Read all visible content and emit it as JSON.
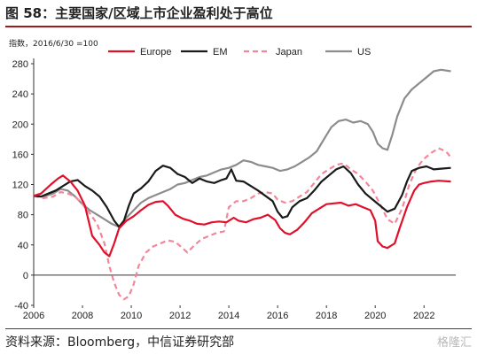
{
  "figure": {
    "title": "图 58：主要国家/区域上市企业盈利处于高位",
    "source": "资料来源：Bloomberg，中信证券研究部",
    "watermark": "格隆汇"
  },
  "colors": {
    "rule": "#9a1b1b",
    "europe": "#e0102a",
    "em": "#1a1a1a",
    "japan": "#f2869a",
    "us": "#8c8c8c"
  },
  "chart_data": {
    "type": "line",
    "title": "",
    "unit_label": "指数，2016/6/30 =100",
    "xlabel": "",
    "ylabel": "",
    "xlim": [
      2006,
      2023.3
    ],
    "ylim": [
      -40,
      280
    ],
    "yticks": [
      -40,
      0,
      40,
      80,
      120,
      160,
      200,
      240,
      280
    ],
    "xticks": [
      2006,
      2008,
      2010,
      2012,
      2014,
      2016,
      2018,
      2020,
      2022
    ],
    "grid": false,
    "legend": "top",
    "series": [
      {
        "name": "Europe",
        "style": "solid",
        "color_key": "europe",
        "points": [
          [
            2006,
            105
          ],
          [
            2006.3,
            108
          ],
          [
            2006.7,
            120
          ],
          [
            2007,
            128
          ],
          [
            2007.2,
            132
          ],
          [
            2007.5,
            124
          ],
          [
            2007.8,
            112
          ],
          [
            2008.1,
            92
          ],
          [
            2008.4,
            52
          ],
          [
            2008.7,
            40
          ],
          [
            2008.9,
            30
          ],
          [
            2009.1,
            25
          ],
          [
            2009.3,
            42
          ],
          [
            2009.5,
            62
          ],
          [
            2009.8,
            72
          ],
          [
            2010.1,
            78
          ],
          [
            2010.4,
            86
          ],
          [
            2010.7,
            93
          ],
          [
            2011.0,
            97
          ],
          [
            2011.3,
            98
          ],
          [
            2011.5,
            92
          ],
          [
            2011.8,
            80
          ],
          [
            2012.1,
            75
          ],
          [
            2012.4,
            72
          ],
          [
            2012.7,
            68
          ],
          [
            2013.0,
            67
          ],
          [
            2013.3,
            70
          ],
          [
            2013.6,
            71
          ],
          [
            2013.9,
            70
          ],
          [
            2014.2,
            76
          ],
          [
            2014.4,
            72
          ],
          [
            2014.7,
            70
          ],
          [
            2015.0,
            74
          ],
          [
            2015.3,
            76
          ],
          [
            2015.6,
            80
          ],
          [
            2015.9,
            73
          ],
          [
            2016.1,
            62
          ],
          [
            2016.3,
            56
          ],
          [
            2016.5,
            54
          ],
          [
            2016.8,
            60
          ],
          [
            2017.1,
            70
          ],
          [
            2017.4,
            82
          ],
          [
            2017.7,
            88
          ],
          [
            2018.0,
            94
          ],
          [
            2018.3,
            95
          ],
          [
            2018.6,
            96
          ],
          [
            2018.9,
            92
          ],
          [
            2019.2,
            94
          ],
          [
            2019.5,
            90
          ],
          [
            2019.8,
            86
          ],
          [
            2020.0,
            72
          ],
          [
            2020.1,
            45
          ],
          [
            2020.3,
            38
          ],
          [
            2020.5,
            36
          ],
          [
            2020.8,
            42
          ],
          [
            2021.0,
            62
          ],
          [
            2021.3,
            90
          ],
          [
            2021.6,
            112
          ],
          [
            2021.8,
            120
          ],
          [
            2022.0,
            122
          ],
          [
            2022.3,
            124
          ],
          [
            2022.6,
            125
          ],
          [
            2023.1,
            124
          ]
        ]
      },
      {
        "name": "EM",
        "style": "solid",
        "color_key": "em",
        "points": [
          [
            2006,
            105
          ],
          [
            2006.3,
            104
          ],
          [
            2006.6,
            108
          ],
          [
            2006.9,
            112
          ],
          [
            2007.2,
            118
          ],
          [
            2007.5,
            124
          ],
          [
            2007.8,
            126
          ],
          [
            2008.1,
            118
          ],
          [
            2008.4,
            112
          ],
          [
            2008.7,
            104
          ],
          [
            2009.0,
            90
          ],
          [
            2009.3,
            72
          ],
          [
            2009.5,
            64
          ],
          [
            2009.7,
            72
          ],
          [
            2009.9,
            92
          ],
          [
            2010.1,
            108
          ],
          [
            2010.4,
            115
          ],
          [
            2010.7,
            124
          ],
          [
            2011.0,
            138
          ],
          [
            2011.3,
            145
          ],
          [
            2011.6,
            142
          ],
          [
            2011.9,
            134
          ],
          [
            2012.2,
            130
          ],
          [
            2012.5,
            122
          ],
          [
            2012.8,
            128
          ],
          [
            2013.1,
            124
          ],
          [
            2013.4,
            122
          ],
          [
            2013.7,
            126
          ],
          [
            2013.9,
            128
          ],
          [
            2014.1,
            140
          ],
          [
            2014.3,
            125
          ],
          [
            2014.6,
            124
          ],
          [
            2014.9,
            118
          ],
          [
            2015.2,
            112
          ],
          [
            2015.5,
            105
          ],
          [
            2015.8,
            98
          ],
          [
            2016.0,
            84
          ],
          [
            2016.2,
            76
          ],
          [
            2016.4,
            78
          ],
          [
            2016.6,
            90
          ],
          [
            2016.9,
            98
          ],
          [
            2017.2,
            102
          ],
          [
            2017.5,
            112
          ],
          [
            2017.8,
            124
          ],
          [
            2018.1,
            132
          ],
          [
            2018.4,
            140
          ],
          [
            2018.7,
            144
          ],
          [
            2019.0,
            135
          ],
          [
            2019.3,
            120
          ],
          [
            2019.6,
            108
          ],
          [
            2019.9,
            100
          ],
          [
            2020.2,
            92
          ],
          [
            2020.5,
            84
          ],
          [
            2020.8,
            88
          ],
          [
            2021.1,
            106
          ],
          [
            2021.3,
            124
          ],
          [
            2021.5,
            138
          ],
          [
            2021.8,
            142
          ],
          [
            2022.1,
            144
          ],
          [
            2022.4,
            140
          ],
          [
            2022.7,
            141
          ],
          [
            2023.1,
            142
          ]
        ]
      },
      {
        "name": "Japan",
        "style": "dashed",
        "color_key": "japan",
        "points": [
          [
            2006,
            105
          ],
          [
            2006.4,
            102
          ],
          [
            2006.8,
            104
          ],
          [
            2007.1,
            110
          ],
          [
            2007.4,
            108
          ],
          [
            2007.7,
            104
          ],
          [
            2008.0,
            94
          ],
          [
            2008.3,
            82
          ],
          [
            2008.6,
            68
          ],
          [
            2008.9,
            42
          ],
          [
            2009.1,
            12
          ],
          [
            2009.3,
            -10
          ],
          [
            2009.5,
            -26
          ],
          [
            2009.7,
            -32
          ],
          [
            2009.9,
            -28
          ],
          [
            2010.1,
            -12
          ],
          [
            2010.3,
            12
          ],
          [
            2010.6,
            30
          ],
          [
            2010.9,
            38
          ],
          [
            2011.2,
            42
          ],
          [
            2011.5,
            46
          ],
          [
            2011.8,
            44
          ],
          [
            2012.1,
            36
          ],
          [
            2012.3,
            30
          ],
          [
            2012.6,
            40
          ],
          [
            2012.9,
            48
          ],
          [
            2013.2,
            52
          ],
          [
            2013.5,
            56
          ],
          [
            2013.8,
            58
          ],
          [
            2014.0,
            90
          ],
          [
            2014.3,
            98
          ],
          [
            2014.6,
            98
          ],
          [
            2014.9,
            102
          ],
          [
            2015.2,
            108
          ],
          [
            2015.5,
            110
          ],
          [
            2015.8,
            108
          ],
          [
            2016.0,
            100
          ],
          [
            2016.3,
            96
          ],
          [
            2016.6,
            98
          ],
          [
            2016.9,
            104
          ],
          [
            2017.2,
            110
          ],
          [
            2017.5,
            122
          ],
          [
            2017.8,
            134
          ],
          [
            2018.1,
            140
          ],
          [
            2018.4,
            146
          ],
          [
            2018.7,
            148
          ],
          [
            2019.0,
            140
          ],
          [
            2019.3,
            134
          ],
          [
            2019.6,
            124
          ],
          [
            2019.9,
            112
          ],
          [
            2020.2,
            94
          ],
          [
            2020.5,
            74
          ],
          [
            2020.8,
            68
          ],
          [
            2021.1,
            88
          ],
          [
            2021.4,
            120
          ],
          [
            2021.7,
            142
          ],
          [
            2022.0,
            154
          ],
          [
            2022.3,
            162
          ],
          [
            2022.6,
            168
          ],
          [
            2022.9,
            164
          ],
          [
            2023.1,
            156
          ]
        ]
      },
      {
        "name": "US",
        "style": "solid",
        "color_key": "us",
        "points": [
          [
            2006,
            105
          ],
          [
            2006.4,
            104
          ],
          [
            2006.8,
            108
          ],
          [
            2007.1,
            114
          ],
          [
            2007.4,
            112
          ],
          [
            2007.7,
            104
          ],
          [
            2008.0,
            94
          ],
          [
            2008.3,
            86
          ],
          [
            2008.6,
            80
          ],
          [
            2008.9,
            74
          ],
          [
            2009.2,
            68
          ],
          [
            2009.5,
            64
          ],
          [
            2009.8,
            76
          ],
          [
            2010.1,
            86
          ],
          [
            2010.4,
            96
          ],
          [
            2010.7,
            102
          ],
          [
            2011.0,
            106
          ],
          [
            2011.3,
            110
          ],
          [
            2011.6,
            114
          ],
          [
            2011.9,
            120
          ],
          [
            2012.2,
            122
          ],
          [
            2012.5,
            126
          ],
          [
            2012.8,
            130
          ],
          [
            2013.1,
            132
          ],
          [
            2013.4,
            136
          ],
          [
            2013.7,
            140
          ],
          [
            2014.0,
            142
          ],
          [
            2014.3,
            146
          ],
          [
            2014.6,
            152
          ],
          [
            2014.9,
            150
          ],
          [
            2015.2,
            146
          ],
          [
            2015.5,
            144
          ],
          [
            2015.8,
            142
          ],
          [
            2016.1,
            138
          ],
          [
            2016.4,
            140
          ],
          [
            2016.7,
            144
          ],
          [
            2017.0,
            150
          ],
          [
            2017.3,
            156
          ],
          [
            2017.6,
            164
          ],
          [
            2017.9,
            180
          ],
          [
            2018.2,
            196
          ],
          [
            2018.5,
            204
          ],
          [
            2018.8,
            206
          ],
          [
            2019.1,
            202
          ],
          [
            2019.4,
            204
          ],
          [
            2019.7,
            200
          ],
          [
            2019.9,
            190
          ],
          [
            2020.1,
            174
          ],
          [
            2020.3,
            168
          ],
          [
            2020.5,
            166
          ],
          [
            2020.7,
            186
          ],
          [
            2020.9,
            210
          ],
          [
            2021.2,
            234
          ],
          [
            2021.5,
            246
          ],
          [
            2021.8,
            254
          ],
          [
            2022.1,
            262
          ],
          [
            2022.4,
            270
          ],
          [
            2022.7,
            272
          ],
          [
            2023.1,
            270
          ]
        ]
      }
    ]
  }
}
